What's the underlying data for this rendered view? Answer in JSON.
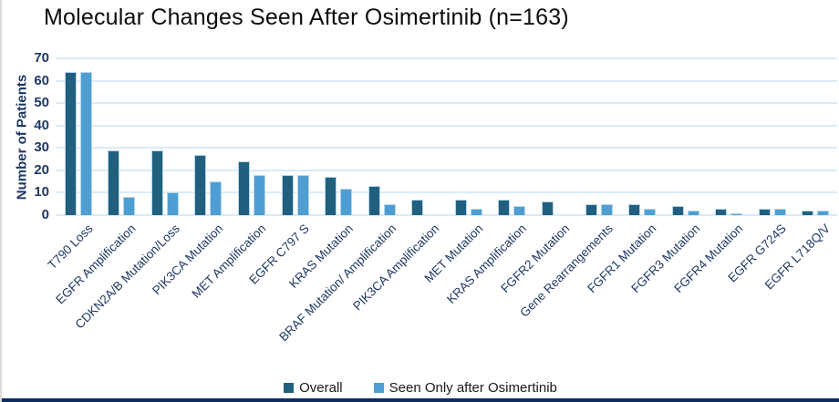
{
  "chart_data": {
    "type": "bar",
    "title": "Molecular Changes Seen After Osimertinib (n=163)",
    "xlabel": "",
    "ylabel": "Number of Patients",
    "ylim": [
      0,
      70
    ],
    "ytick_step": 10,
    "grid": true,
    "legend_position": "bottom",
    "categories": [
      "T790 Loss",
      "EGFR Amplification",
      "CDKN2A/B Mutation/Loss",
      "PIK3CA Mutation",
      "MET Amplification",
      "EGFR C797 S",
      "KRAS Mutation",
      "BRAF Mutation/ Amplification",
      "PIK3CA Amplification",
      "MET Mutation",
      "KRAS Amplification",
      "FGFR2 Mutation",
      "Gene Rearrangements",
      "FGFR1 Mutation",
      "FGFR3 Mutation",
      "FGFR4 Mutation",
      "EGFR G724S",
      "EGFR L718Q/V"
    ],
    "series": [
      {
        "name": "Overall",
        "color": "#215f7e",
        "values": [
          64,
          29,
          29,
          27,
          24,
          18,
          17,
          13,
          7,
          7,
          7,
          6,
          5,
          5,
          4,
          3,
          3,
          2
        ]
      },
      {
        "name": "Seen Only after Osimertinib",
        "color": "#4f9ed3",
        "values": [
          64,
          8,
          10,
          15,
          18,
          18,
          12,
          5,
          0,
          3,
          4,
          0,
          5,
          3,
          2,
          1,
          3,
          2
        ]
      }
    ],
    "colors": {
      "bar_border": "#b5d7ec",
      "gridline": "#d9ebf8",
      "axis_text": "#1f3864",
      "category_text": "#1f3864",
      "title_text": "#0d0d0d",
      "accent_band": "#0f2c5f"
    }
  }
}
